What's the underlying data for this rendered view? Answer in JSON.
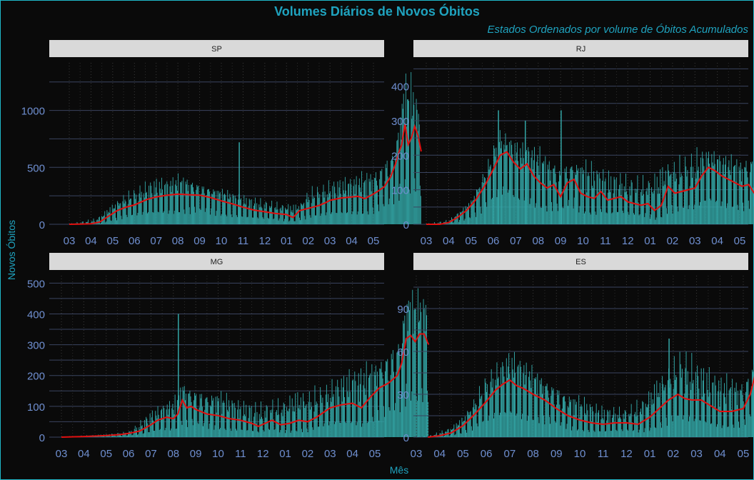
{
  "title": "Volumes Diários de Novos Óbitos",
  "subtitle": "Estados Ordenados por volume de Óbitos Acumulados",
  "xlabel": "Mês",
  "ylabel": "Novos Óbitos",
  "colors": {
    "background": "#0a0a0a",
    "bars": "#33a6a6",
    "moving_average": "#e01010",
    "strip": "#d9d9d9",
    "text": "#1fa3bf",
    "ticks": "#6f8fd0",
    "grid": "#3a4460"
  },
  "chart_data": [
    {
      "type": "bar",
      "facet": "SP",
      "x_ticks": [
        "03",
        "04",
        "05",
        "06",
        "07",
        "08",
        "09",
        "10",
        "11",
        "12",
        "01",
        "02",
        "03",
        "04",
        "05"
      ],
      "y_ticks": [
        0,
        500,
        1000
      ],
      "ylim": [
        0,
        1380
      ],
      "overlay": "line",
      "moving_average": [
        [
          0,
          0
        ],
        [
          0.5,
          2
        ],
        [
          1,
          5
        ],
        [
          1.4,
          20
        ],
        [
          1.8,
          70
        ],
        [
          2.2,
          120
        ],
        [
          2.6,
          150
        ],
        [
          3,
          170
        ],
        [
          3.3,
          195
        ],
        [
          3.6,
          220
        ],
        [
          4,
          240
        ],
        [
          4.5,
          255
        ],
        [
          5,
          265
        ],
        [
          5.5,
          260
        ],
        [
          6,
          255
        ],
        [
          6.5,
          235
        ],
        [
          7,
          205
        ],
        [
          7.5,
          180
        ],
        [
          8,
          150
        ],
        [
          8.5,
          125
        ],
        [
          9,
          110
        ],
        [
          9.5,
          95
        ],
        [
          10,
          85
        ],
        [
          10.3,
          60
        ],
        [
          10.6,
          120
        ],
        [
          11,
          140
        ],
        [
          11.5,
          165
        ],
        [
          11.8,
          190
        ],
        [
          12,
          210
        ],
        [
          12.5,
          230
        ],
        [
          13,
          240
        ],
        [
          13.3,
          245
        ],
        [
          13.6,
          225
        ],
        [
          13.9,
          255
        ],
        [
          14.2,
          290
        ],
        [
          14.5,
          330
        ],
        [
          14.8,
          420
        ],
        [
          15,
          520
        ],
        [
          15.15,
          620
        ],
        [
          15.3,
          700
        ],
        [
          15.45,
          880
        ],
        [
          15.6,
          700
        ],
        [
          15.75,
          760
        ],
        [
          15.9,
          860
        ],
        [
          16.05,
          780
        ],
        [
          16.2,
          640
        ]
      ],
      "bar_peak_envelope": [
        [
          0,
          5
        ],
        [
          1.2,
          60
        ],
        [
          1.8,
          150
        ],
        [
          2.5,
          280
        ],
        [
          3.3,
          370
        ],
        [
          4,
          420
        ],
        [
          4.5,
          405
        ],
        [
          5,
          450
        ],
        [
          5.5,
          440
        ],
        [
          6,
          380
        ],
        [
          7,
          320
        ],
        [
          8,
          260
        ],
        [
          9,
          230
        ],
        [
          10,
          190
        ],
        [
          10.6,
          180
        ],
        [
          11,
          340
        ],
        [
          12,
          400
        ],
        [
          13,
          430
        ],
        [
          14,
          520
        ],
        [
          15,
          720
        ],
        [
          15.4,
          1380
        ],
        [
          15.8,
          1330
        ],
        [
          16.2,
          900
        ]
      ],
      "spikes": [
        [
          7.8,
          720
        ]
      ]
    },
    {
      "type": "bar",
      "facet": "RJ",
      "x_ticks": [
        "03",
        "04",
        "05",
        "06",
        "07",
        "08",
        "09",
        "10",
        "11",
        "12",
        "01",
        "02",
        "03",
        "04",
        "05"
      ],
      "y_ticks": [
        0,
        100,
        200,
        300,
        400
      ],
      "ylim": [
        0,
        455
      ],
      "overlay": "line",
      "moving_average": [
        [
          0,
          0
        ],
        [
          0.6,
          0
        ],
        [
          1,
          5
        ],
        [
          1.4,
          20
        ],
        [
          1.8,
          40
        ],
        [
          2.2,
          70
        ],
        [
          2.6,
          110
        ],
        [
          3,
          160
        ],
        [
          3.3,
          200
        ],
        [
          3.6,
          210
        ],
        [
          3.9,
          180
        ],
        [
          4.2,
          160
        ],
        [
          4.5,
          175
        ],
        [
          4.8,
          140
        ],
        [
          5.1,
          120
        ],
        [
          5.4,
          105
        ],
        [
          5.7,
          115
        ],
        [
          6,
          80
        ],
        [
          6.3,
          120
        ],
        [
          6.6,
          130
        ],
        [
          6.9,
          90
        ],
        [
          7.2,
          80
        ],
        [
          7.5,
          75
        ],
        [
          7.8,
          95
        ],
        [
          8.1,
          70
        ],
        [
          8.4,
          75
        ],
        [
          8.7,
          80
        ],
        [
          9,
          65
        ],
        [
          9.3,
          60
        ],
        [
          9.6,
          55
        ],
        [
          9.9,
          60
        ],
        [
          10.2,
          40
        ],
        [
          10.5,
          55
        ],
        [
          10.8,
          110
        ],
        [
          11.1,
          90
        ],
        [
          11.4,
          95
        ],
        [
          11.7,
          100
        ],
        [
          12,
          105
        ],
        [
          12.3,
          140
        ],
        [
          12.6,
          165
        ],
        [
          12.9,
          155
        ],
        [
          13.2,
          140
        ],
        [
          13.5,
          130
        ],
        [
          13.8,
          120
        ],
        [
          14.1,
          110
        ],
        [
          14.4,
          115
        ],
        [
          14.7,
          85
        ],
        [
          15,
          95
        ],
        [
          15.3,
          160
        ],
        [
          15.6,
          240
        ],
        [
          15.9,
          270
        ],
        [
          16.2,
          275
        ],
        [
          16.4,
          285
        ]
      ],
      "bar_peak_envelope": [
        [
          0,
          2
        ],
        [
          1,
          15
        ],
        [
          2,
          70
        ],
        [
          2.8,
          200
        ],
        [
          3.2,
          290
        ],
        [
          3.6,
          260
        ],
        [
          4.2,
          240
        ],
        [
          5,
          230
        ],
        [
          6,
          190
        ],
        [
          7,
          200
        ],
        [
          8,
          160
        ],
        [
          9,
          150
        ],
        [
          10,
          150
        ],
        [
          10.6,
          180
        ],
        [
          11,
          200
        ],
        [
          12,
          230
        ],
        [
          13,
          210
        ],
        [
          14,
          200
        ],
        [
          15,
          260
        ],
        [
          15.5,
          400
        ],
        [
          16,
          450
        ],
        [
          16.4,
          370
        ]
      ],
      "spikes": [
        [
          3.2,
          330
        ],
        [
          4.4,
          300
        ],
        [
          6,
          330
        ]
      ]
    },
    {
      "type": "bar",
      "facet": "MG",
      "x_ticks": [
        "03",
        "04",
        "05",
        "06",
        "07",
        "08",
        "09",
        "10",
        "11",
        "12",
        "01",
        "02",
        "03",
        "04",
        "05"
      ],
      "y_ticks": [
        0,
        100,
        200,
        300,
        400,
        500
      ],
      "ylim": [
        0,
        510
      ],
      "overlay": "line",
      "moving_average": [
        [
          0,
          0
        ],
        [
          1,
          2
        ],
        [
          2,
          5
        ],
        [
          2.6,
          8
        ],
        [
          3,
          12
        ],
        [
          3.5,
          20
        ],
        [
          4,
          40
        ],
        [
          4.3,
          55
        ],
        [
          4.7,
          65
        ],
        [
          5,
          60
        ],
        [
          5.2,
          75
        ],
        [
          5.4,
          120
        ],
        [
          5.6,
          95
        ],
        [
          5.8,
          100
        ],
        [
          6,
          90
        ],
        [
          6.5,
          75
        ],
        [
          7,
          70
        ],
        [
          7.5,
          60
        ],
        [
          8,
          55
        ],
        [
          8.5,
          45
        ],
        [
          8.8,
          35
        ],
        [
          9.1,
          45
        ],
        [
          9.4,
          55
        ],
        [
          9.8,
          40
        ],
        [
          10.2,
          45
        ],
        [
          10.6,
          55
        ],
        [
          11,
          50
        ],
        [
          11.4,
          65
        ],
        [
          11.7,
          80
        ],
        [
          12,
          95
        ],
        [
          12.5,
          105
        ],
        [
          13,
          110
        ],
        [
          13.4,
          95
        ],
        [
          13.8,
          130
        ],
        [
          14.2,
          160
        ],
        [
          14.6,
          175
        ],
        [
          15,
          200
        ],
        [
          15.2,
          240
        ],
        [
          15.4,
          320
        ],
        [
          15.6,
          330
        ],
        [
          15.8,
          310
        ],
        [
          16,
          335
        ],
        [
          16.2,
          335
        ],
        [
          16.4,
          300
        ]
      ],
      "bar_peak_envelope": [
        [
          0,
          2
        ],
        [
          2,
          10
        ],
        [
          3,
          20
        ],
        [
          4,
          90
        ],
        [
          4.5,
          110
        ],
        [
          5,
          130
        ],
        [
          5.4,
          190
        ],
        [
          6,
          170
        ],
        [
          7,
          160
        ],
        [
          8,
          120
        ],
        [
          9,
          120
        ],
        [
          10,
          140
        ],
        [
          11,
          170
        ],
        [
          12,
          190
        ],
        [
          13,
          230
        ],
        [
          14,
          260
        ],
        [
          15,
          340
        ],
        [
          15.4,
          500
        ],
        [
          15.8,
          490
        ],
        [
          16.2,
          470
        ]
      ],
      "spikes": [
        [
          5.2,
          400
        ]
      ]
    },
    {
      "type": "bar",
      "facet": "ES",
      "x_ticks": [
        "03",
        "04",
        "05",
        "06",
        "07",
        "08",
        "09",
        "10",
        "11",
        "12",
        "01",
        "02",
        "03",
        "04",
        "05"
      ],
      "y_ticks": [
        0,
        30,
        60,
        90
      ],
      "ylim": [
        0,
        110
      ],
      "overlay": "line",
      "moving_average": [
        [
          0.5,
          0
        ],
        [
          1,
          1
        ],
        [
          1.5,
          3
        ],
        [
          2,
          8
        ],
        [
          2.5,
          16
        ],
        [
          3,
          25
        ],
        [
          3.4,
          33
        ],
        [
          3.7,
          37
        ],
        [
          4,
          40
        ],
        [
          4.3,
          36
        ],
        [
          4.6,
          34
        ],
        [
          5,
          30
        ],
        [
          5.5,
          26
        ],
        [
          6,
          20
        ],
        [
          6.5,
          15
        ],
        [
          7,
          12
        ],
        [
          7.5,
          10
        ],
        [
          8,
          9
        ],
        [
          8.5,
          10
        ],
        [
          9,
          10
        ],
        [
          9.5,
          9
        ],
        [
          10,
          14
        ],
        [
          10.4,
          20
        ],
        [
          10.8,
          26
        ],
        [
          11.2,
          30
        ],
        [
          11.5,
          27
        ],
        [
          11.8,
          26
        ],
        [
          12.2,
          26
        ],
        [
          12.6,
          22
        ],
        [
          13,
          18
        ],
        [
          13.5,
          18
        ],
        [
          14,
          20
        ],
        [
          14.3,
          30
        ],
        [
          14.6,
          50
        ],
        [
          14.9,
          57
        ],
        [
          15.2,
          63
        ],
        [
          15.5,
          66
        ],
        [
          15.8,
          73
        ],
        [
          16,
          76
        ]
      ],
      "bar_peak_envelope": [
        [
          0.5,
          1
        ],
        [
          1.5,
          8
        ],
        [
          2,
          15
        ],
        [
          2.5,
          30
        ],
        [
          3,
          48
        ],
        [
          3.6,
          55
        ],
        [
          4,
          62
        ],
        [
          4.4,
          58
        ],
        [
          5,
          50
        ],
        [
          6,
          40
        ],
        [
          7,
          30
        ],
        [
          8,
          22
        ],
        [
          9,
          22
        ],
        [
          10,
          35
        ],
        [
          10.4,
          45
        ],
        [
          11,
          58
        ],
        [
          11.4,
          70
        ],
        [
          12,
          55
        ],
        [
          13,
          45
        ],
        [
          14,
          45
        ],
        [
          15,
          70
        ],
        [
          15.4,
          105
        ],
        [
          15.8,
          108
        ],
        [
          16,
          96
        ]
      ],
      "spikes": [
        [
          10.8,
          69
        ]
      ]
    }
  ]
}
